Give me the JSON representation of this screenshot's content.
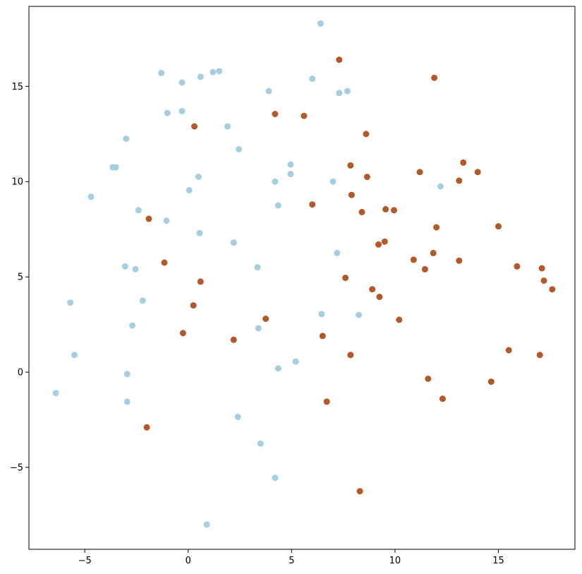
{
  "chart_data": {
    "type": "scatter",
    "title": "",
    "xlabel": "",
    "ylabel": "",
    "xlim": [
      -7.7,
      18.7
    ],
    "ylim": [
      -9.3,
      19.2
    ],
    "xticks": [
      -5,
      0,
      5,
      10,
      15
    ],
    "yticks": [
      -5,
      0,
      5,
      10,
      15
    ],
    "grid": false,
    "legend": "none",
    "series": [
      {
        "color": "#a6cee3",
        "points": [
          [
            6.4,
            18.3
          ],
          [
            -1.3,
            15.7
          ],
          [
            -0.3,
            15.2
          ],
          [
            0.6,
            15.5
          ],
          [
            1.2,
            15.75
          ],
          [
            1.5,
            15.8
          ],
          [
            3.9,
            14.75
          ],
          [
            6.0,
            15.4
          ],
          [
            7.3,
            14.65
          ],
          [
            7.7,
            14.75
          ],
          [
            -1.0,
            13.6
          ],
          [
            -0.3,
            13.7
          ],
          [
            1.9,
            12.9
          ],
          [
            -3.0,
            12.25
          ],
          [
            2.45,
            11.7
          ],
          [
            -3.65,
            10.75
          ],
          [
            -3.5,
            10.75
          ],
          [
            0.5,
            10.25
          ],
          [
            4.95,
            10.9
          ],
          [
            4.95,
            10.4
          ],
          [
            4.2,
            10.0
          ],
          [
            7.0,
            10.0
          ],
          [
            12.2,
            9.75
          ],
          [
            0.05,
            9.55
          ],
          [
            -4.7,
            9.2
          ],
          [
            -2.4,
            8.5
          ],
          [
            4.35,
            8.75
          ],
          [
            -1.05,
            7.95
          ],
          [
            0.55,
            7.3
          ],
          [
            2.2,
            6.8
          ],
          [
            7.2,
            6.25
          ],
          [
            -3.05,
            5.55
          ],
          [
            -2.55,
            5.4
          ],
          [
            3.35,
            5.5
          ],
          [
            -5.7,
            3.65
          ],
          [
            -2.2,
            3.75
          ],
          [
            6.45,
            3.05
          ],
          [
            8.25,
            3.0
          ],
          [
            -2.7,
            2.45
          ],
          [
            3.4,
            2.3
          ],
          [
            -5.5,
            0.9
          ],
          [
            4.35,
            0.2
          ],
          [
            5.2,
            0.55
          ],
          [
            -2.95,
            -0.1
          ],
          [
            -6.4,
            -1.1
          ],
          [
            -2.95,
            -1.55
          ],
          [
            2.4,
            -2.35
          ],
          [
            3.5,
            -3.75
          ],
          [
            4.2,
            -5.55
          ],
          [
            0.9,
            -8.0
          ]
        ]
      },
      {
        "color": "#b15928",
        "points": [
          [
            7.3,
            16.4
          ],
          [
            11.9,
            15.45
          ],
          [
            4.2,
            13.55
          ],
          [
            5.6,
            13.45
          ],
          [
            0.3,
            12.9
          ],
          [
            8.6,
            12.5
          ],
          [
            13.3,
            11.0
          ],
          [
            7.85,
            10.85
          ],
          [
            11.2,
            10.5
          ],
          [
            14.0,
            10.5
          ],
          [
            8.65,
            10.25
          ],
          [
            13.1,
            10.05
          ],
          [
            7.9,
            9.3
          ],
          [
            6.0,
            8.8
          ],
          [
            9.55,
            8.55
          ],
          [
            9.95,
            8.5
          ],
          [
            8.4,
            8.4
          ],
          [
            -1.9,
            8.05
          ],
          [
            15.0,
            7.65
          ],
          [
            12.0,
            7.6
          ],
          [
            9.5,
            6.85
          ],
          [
            9.2,
            6.7
          ],
          [
            11.85,
            6.25
          ],
          [
            10.9,
            5.9
          ],
          [
            13.1,
            5.85
          ],
          [
            -1.15,
            5.75
          ],
          [
            15.9,
            5.55
          ],
          [
            11.45,
            5.4
          ],
          [
            17.1,
            5.45
          ],
          [
            7.6,
            4.95
          ],
          [
            17.2,
            4.8
          ],
          [
            0.6,
            4.75
          ],
          [
            8.9,
            4.35
          ],
          [
            17.6,
            4.35
          ],
          [
            9.25,
            3.95
          ],
          [
            0.25,
            3.5
          ],
          [
            3.75,
            2.8
          ],
          [
            10.2,
            2.75
          ],
          [
            -0.25,
            2.05
          ],
          [
            6.5,
            1.9
          ],
          [
            2.2,
            1.7
          ],
          [
            15.5,
            1.15
          ],
          [
            7.85,
            0.9
          ],
          [
            17.0,
            0.9
          ],
          [
            11.6,
            -0.35
          ],
          [
            14.65,
            -0.5
          ],
          [
            6.7,
            -1.55
          ],
          [
            12.3,
            -1.4
          ],
          [
            -2.0,
            -2.9
          ],
          [
            8.3,
            -6.25
          ]
        ]
      }
    ]
  }
}
